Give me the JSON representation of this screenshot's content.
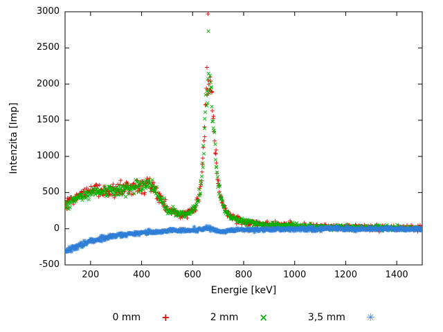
{
  "chart_data": {
    "type": "scatter",
    "title": "",
    "xlabel": "Energie [keV]",
    "ylabel": "Intenzita [Imp]",
    "xlim": [
      100,
      1500
    ],
    "ylim": [
      -500,
      3000
    ],
    "xticks": [
      200,
      400,
      600,
      800,
      1000,
      1200,
      1400
    ],
    "yticks": [
      -500,
      0,
      500,
      1000,
      1500,
      2000,
      2500,
      3000
    ],
    "grid": false,
    "legend_position": "bottom-center",
    "background": "#ffffff",
    "axis_color": "#000000",
    "peak_energy_keV": 662,
    "series": [
      {
        "name": "0 mm",
        "marker": "plus",
        "legend_glyph": "+",
        "color": "#e60000",
        "seed": 101,
        "step": 2,
        "noise": {
          "base": 20,
          "frac": 0.05
        },
        "anchors": [
          [
            100,
            320
          ],
          [
            120,
            380
          ],
          [
            140,
            430
          ],
          [
            160,
            470
          ],
          [
            180,
            510
          ],
          [
            200,
            545
          ],
          [
            215,
            565
          ],
          [
            230,
            560
          ],
          [
            250,
            535
          ],
          [
            270,
            525
          ],
          [
            290,
            530
          ],
          [
            310,
            540
          ],
          [
            330,
            555
          ],
          [
            350,
            565
          ],
          [
            370,
            580
          ],
          [
            390,
            600
          ],
          [
            410,
            615
          ],
          [
            425,
            620
          ],
          [
            440,
            590
          ],
          [
            455,
            520
          ],
          [
            470,
            430
          ],
          [
            485,
            340
          ],
          [
            500,
            280
          ],
          [
            515,
            245
          ],
          [
            530,
            225
          ],
          [
            545,
            210
          ],
          [
            560,
            205
          ],
          [
            575,
            210
          ],
          [
            590,
            230
          ],
          [
            605,
            280
          ],
          [
            615,
            340
          ],
          [
            625,
            470
          ],
          [
            635,
            700
          ],
          [
            642,
            1050
          ],
          [
            648,
            1450
          ],
          [
            654,
            1800
          ],
          [
            660,
            2050
          ],
          [
            664,
            2100
          ],
          [
            668,
            2050
          ],
          [
            674,
            1850
          ],
          [
            680,
            1550
          ],
          [
            686,
            1250
          ],
          [
            692,
            950
          ],
          [
            700,
            650
          ],
          [
            710,
            450
          ],
          [
            720,
            330
          ],
          [
            730,
            260
          ],
          [
            745,
            200
          ],
          [
            760,
            160
          ],
          [
            780,
            125
          ],
          [
            800,
            105
          ],
          [
            830,
            85
          ],
          [
            860,
            70
          ],
          [
            900,
            55
          ],
          [
            950,
            45
          ],
          [
            1000,
            38
          ],
          [
            1060,
            30
          ],
          [
            1120,
            25
          ],
          [
            1200,
            20
          ],
          [
            1300,
            14
          ],
          [
            1400,
            10
          ],
          [
            1500,
            8
          ]
        ],
        "outliers": [
          [
            660,
            2970
          ],
          [
            656,
            2230
          ]
        ]
      },
      {
        "name": "2 mm",
        "marker": "cross",
        "legend_glyph": "×",
        "color": "#00b400",
        "seed": 202,
        "step": 2,
        "noise": {
          "base": 16,
          "frac": 0.05
        },
        "anchors": [
          [
            100,
            310
          ],
          [
            130,
            380
          ],
          [
            160,
            440
          ],
          [
            200,
            500
          ],
          [
            230,
            515
          ],
          [
            260,
            510
          ],
          [
            290,
            515
          ],
          [
            320,
            530
          ],
          [
            350,
            550
          ],
          [
            380,
            575
          ],
          [
            410,
            600
          ],
          [
            425,
            610
          ],
          [
            440,
            580
          ],
          [
            455,
            515
          ],
          [
            470,
            425
          ],
          [
            485,
            335
          ],
          [
            500,
            275
          ],
          [
            515,
            240
          ],
          [
            530,
            220
          ],
          [
            545,
            205
          ],
          [
            560,
            200
          ],
          [
            575,
            205
          ],
          [
            590,
            225
          ],
          [
            605,
            270
          ],
          [
            615,
            330
          ],
          [
            625,
            450
          ],
          [
            635,
            680
          ],
          [
            642,
            1020
          ],
          [
            648,
            1400
          ],
          [
            654,
            1750
          ],
          [
            660,
            1980
          ],
          [
            664,
            2020
          ],
          [
            668,
            1970
          ],
          [
            674,
            1800
          ],
          [
            680,
            1500
          ],
          [
            686,
            1200
          ],
          [
            692,
            900
          ],
          [
            700,
            620
          ],
          [
            710,
            430
          ],
          [
            720,
            315
          ],
          [
            730,
            250
          ],
          [
            745,
            190
          ],
          [
            760,
            155
          ],
          [
            780,
            120
          ],
          [
            800,
            100
          ],
          [
            830,
            82
          ],
          [
            860,
            68
          ],
          [
            900,
            52
          ],
          [
            950,
            43
          ],
          [
            1000,
            36
          ],
          [
            1060,
            29
          ],
          [
            1120,
            24
          ],
          [
            1200,
            18
          ],
          [
            1300,
            13
          ],
          [
            1400,
            9
          ],
          [
            1500,
            7
          ]
        ],
        "outliers": [
          [
            662,
            2730
          ]
        ]
      },
      {
        "name": "3,5 mm",
        "marker": "asterisk",
        "legend_glyph": "✳",
        "color": "#2f7ed8",
        "seed": 303,
        "step": 2,
        "noise": {
          "base": 13,
          "frac": 0.04
        },
        "anchors": [
          [
            100,
            -295
          ],
          [
            115,
            -285
          ],
          [
            130,
            -270
          ],
          [
            145,
            -250
          ],
          [
            160,
            -230
          ],
          [
            180,
            -200
          ],
          [
            200,
            -175
          ],
          [
            220,
            -155
          ],
          [
            240,
            -135
          ],
          [
            260,
            -120
          ],
          [
            280,
            -105
          ],
          [
            300,
            -95
          ],
          [
            325,
            -82
          ],
          [
            350,
            -72
          ],
          [
            375,
            -62
          ],
          [
            400,
            -55
          ],
          [
            430,
            -47
          ],
          [
            460,
            -40
          ],
          [
            490,
            -34
          ],
          [
            520,
            -30
          ],
          [
            550,
            -26
          ],
          [
            580,
            -22
          ],
          [
            610,
            -15
          ],
          [
            630,
            -8
          ],
          [
            645,
            0
          ],
          [
            660,
            8
          ],
          [
            670,
            5
          ],
          [
            680,
            -8
          ],
          [
            695,
            -30
          ],
          [
            710,
            -42
          ],
          [
            725,
            -40
          ],
          [
            740,
            -32
          ],
          [
            760,
            -25
          ],
          [
            790,
            -18
          ],
          [
            820,
            -14
          ],
          [
            860,
            -10
          ],
          [
            900,
            -8
          ],
          [
            950,
            -6
          ],
          [
            1000,
            -5
          ],
          [
            1100,
            -4
          ],
          [
            1200,
            -3
          ],
          [
            1350,
            -3
          ],
          [
            1500,
            -3
          ]
        ],
        "outliers": []
      }
    ]
  }
}
